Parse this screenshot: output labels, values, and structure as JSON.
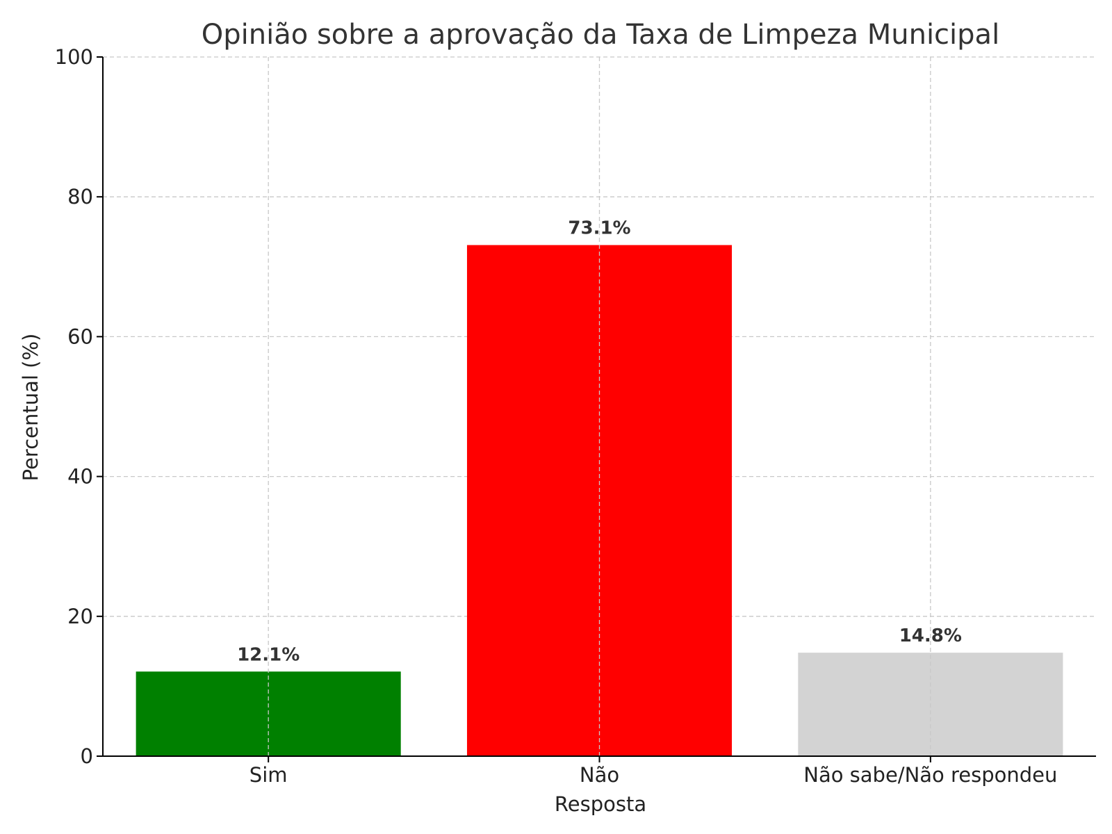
{
  "chart_data": {
    "type": "bar",
    "title": "Opinião sobre a aprovação da Taxa de Limpeza Municipal",
    "xlabel": "Resposta",
    "ylabel": "Percentual (%)",
    "categories": [
      "Sim",
      "Não",
      "Não sabe/Não respondeu"
    ],
    "values": [
      12.1,
      73.1,
      14.8
    ],
    "data_labels": [
      "12.1%",
      "73.1%",
      "14.8%"
    ],
    "colors": [
      "#008000",
      "#ff0000",
      "#d3d3d3"
    ],
    "ylim": [
      0,
      100
    ],
    "yticks": [
      0,
      20,
      40,
      60,
      80,
      100
    ],
    "grid": true,
    "legend": false
  }
}
